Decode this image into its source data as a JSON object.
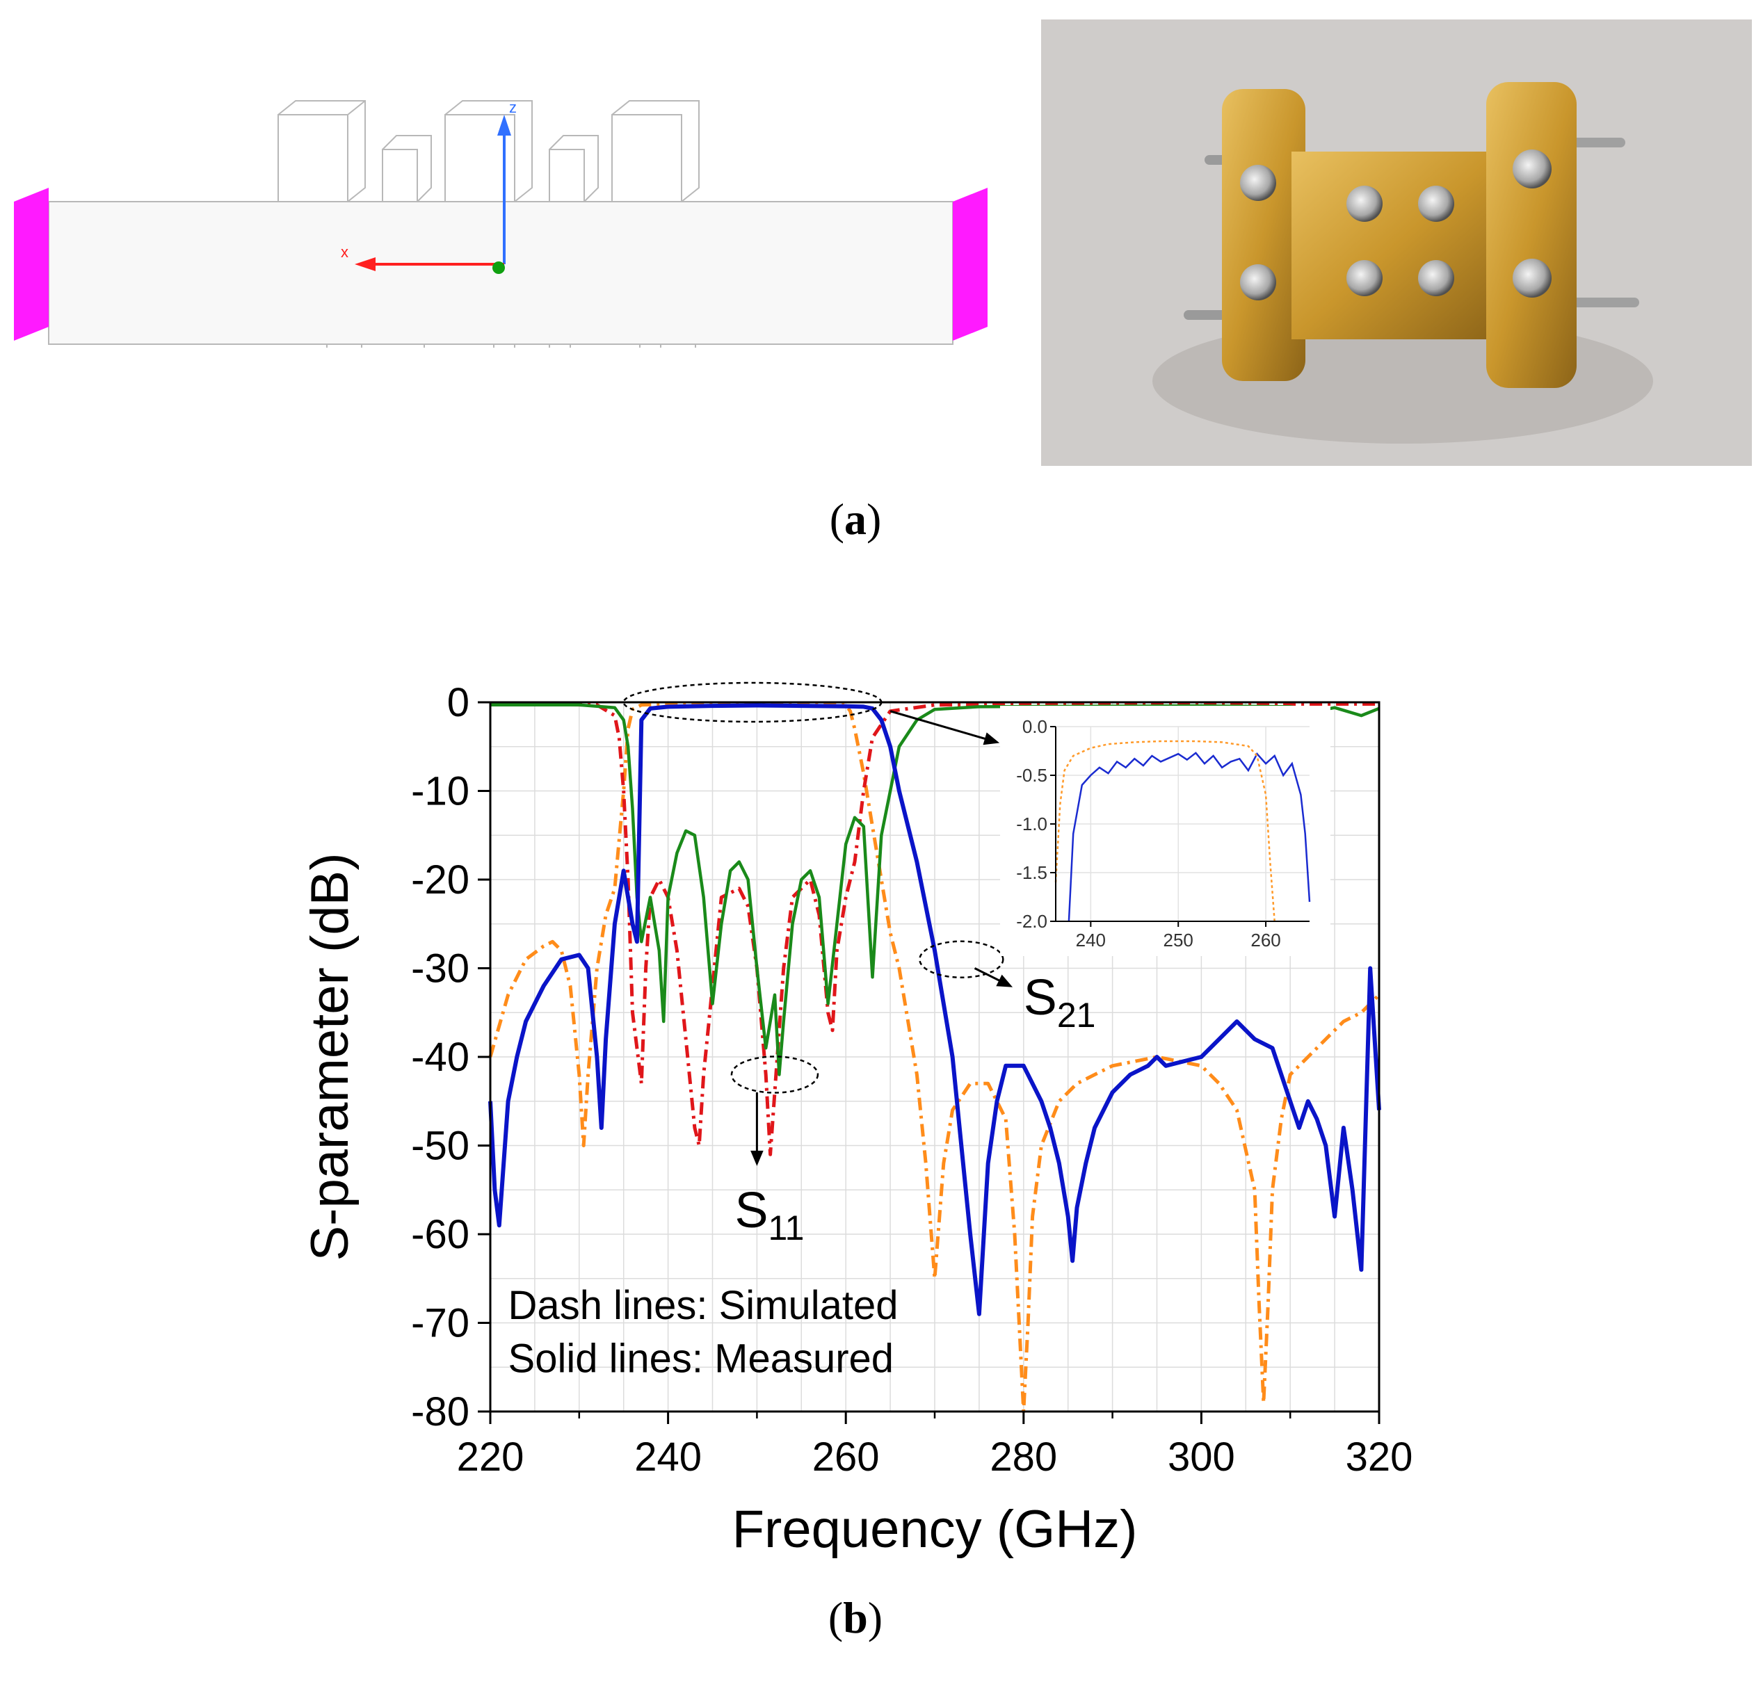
{
  "panels": {
    "a_label": "a",
    "b_label": "b"
  },
  "model": {
    "axis_z": "z",
    "axis_x": "x",
    "port_color": "#ff1aff",
    "outline_color": "#b8b8b8"
  },
  "photo": {
    "subject": "waveguide-filter-block",
    "metal_color": "#c99a2e",
    "background_color": "#cfccca"
  },
  "chart_data": {
    "type": "line",
    "xlabel": "Frequency (GHz)",
    "ylabel": "S-parameter (dB)",
    "xlim": [
      220,
      320
    ],
    "ylim": [
      -80,
      0
    ],
    "xticks": [
      220,
      240,
      260,
      280,
      300,
      320
    ],
    "yticks": [
      0,
      -10,
      -20,
      -30,
      -40,
      -50,
      -60,
      -70,
      -80
    ],
    "grid": true,
    "annotations": {
      "s21_prefix": "S",
      "s21_sub": "21",
      "s11_prefix": "S",
      "s11_sub": "11",
      "note_line1": "Dash lines: Simulated",
      "note_line2": "Solid lines: Measured"
    },
    "series": [
      {
        "key": "meas_s21",
        "color": "#0a14c8",
        "dash": "solid",
        "x": [
          220,
          220.5,
          221,
          222,
          223,
          224,
          226,
          228,
          230,
          231,
          232,
          232.5,
          233,
          234,
          235,
          236,
          236.5,
          237,
          238,
          240,
          245,
          250,
          255,
          260,
          262,
          263,
          264,
          265,
          266,
          268,
          270,
          272,
          273,
          274,
          275,
          276,
          277,
          278,
          280,
          282,
          283,
          284,
          285,
          285.5,
          286,
          287,
          288,
          289,
          290,
          292,
          294,
          295,
          296,
          298,
          300,
          302,
          304,
          306,
          308,
          310,
          311,
          312,
          313,
          314,
          315,
          316,
          317,
          318,
          319,
          320
        ],
        "y": [
          -45,
          -55,
          -59,
          -45,
          -40,
          -36,
          -32,
          -29,
          -28.5,
          -30,
          -40,
          -48,
          -38,
          -25,
          -19,
          -25,
          -27,
          -2,
          -0.7,
          -0.5,
          -0.4,
          -0.35,
          -0.4,
          -0.45,
          -0.5,
          -0.7,
          -2,
          -5,
          -10,
          -18,
          -28,
          -40,
          -50,
          -60,
          -69,
          -52,
          -45,
          -41,
          -41,
          -45,
          -48,
          -52,
          -58,
          -63,
          -57,
          -52,
          -48,
          -46,
          -44,
          -42,
          -41,
          -40,
          -41,
          -40.5,
          -40,
          -38,
          -36,
          -38,
          -39,
          -45,
          -48,
          -45,
          -47,
          -50,
          -58,
          -48,
          -55,
          -64,
          -30,
          -46
        ]
      },
      {
        "key": "meas_s11",
        "color": "#1a8a1a",
        "dash": "solid",
        "x": [
          220,
          230,
          234,
          235,
          235.5,
          236,
          236.5,
          237,
          238,
          239,
          239.5,
          240,
          241,
          242,
          243,
          244,
          245,
          246,
          247,
          248,
          249,
          250,
          251,
          252,
          252.5,
          253,
          254,
          255,
          256,
          257,
          258,
          259,
          260,
          261,
          262,
          263,
          264,
          266,
          268,
          270,
          275,
          300,
          310,
          313,
          315,
          318,
          320
        ],
        "y": [
          -0.3,
          -0.3,
          -0.6,
          -2,
          -5,
          -12,
          -22,
          -27,
          -22,
          -28,
          -36,
          -22,
          -17,
          -14.5,
          -15,
          -22,
          -34,
          -25,
          -19,
          -18,
          -20,
          -30,
          -39,
          -33,
          -42,
          -36,
          -25,
          -20,
          -19,
          -22,
          -34,
          -25,
          -16,
          -13,
          -14,
          -31,
          -15,
          -5,
          -2,
          -0.8,
          -0.5,
          -0.4,
          -0.5,
          -1,
          -0.6,
          -1.5,
          -0.7
        ]
      },
      {
        "key": "sim_s21",
        "color": "#ff8c1a",
        "dash": "dashdot",
        "x": [
          220,
          222,
          224,
          226,
          227,
          228,
          229,
          230,
          230.5,
          231,
          232,
          233,
          234,
          235,
          235.5,
          236,
          237,
          240,
          245,
          250,
          255,
          260,
          260.5,
          261,
          262,
          263,
          264,
          265,
          266,
          268,
          269,
          270,
          271,
          272,
          274,
          276,
          278,
          279,
          279.5,
          280,
          280.5,
          281,
          282,
          284,
          286,
          288,
          290,
          295,
          300,
          302,
          304,
          306,
          306.5,
          307,
          307.5,
          308,
          309,
          310,
          312,
          314,
          316,
          318,
          320
        ],
        "y": [
          -40,
          -33,
          -29,
          -27.5,
          -27,
          -28,
          -32,
          -42,
          -50,
          -42,
          -30,
          -24,
          -21,
          -10,
          -3,
          -0.8,
          -0.3,
          -0.2,
          -0.15,
          -0.15,
          -0.15,
          -0.3,
          -1,
          -3,
          -8,
          -14,
          -20,
          -26,
          -30,
          -42,
          -52,
          -65,
          -52,
          -46,
          -43,
          -43,
          -47,
          -60,
          -70,
          -80,
          -70,
          -58,
          -50,
          -45,
          -43,
          -42,
          -41,
          -40,
          -41,
          -43,
          -46,
          -55,
          -68,
          -79,
          -68,
          -55,
          -47,
          -42,
          -40,
          -38,
          -36,
          -35,
          -33
        ]
      },
      {
        "key": "sim_s11",
        "color": "#e0161a",
        "dash": "dashdot",
        "x": [
          220,
          232,
          234,
          234.5,
          235,
          235.5,
          236,
          237,
          237.5,
          238,
          239,
          240,
          241,
          242,
          243,
          243.5,
          244,
          246,
          248,
          249,
          250,
          251,
          251.5,
          252,
          253,
          254,
          256,
          257,
          258,
          258.5,
          259,
          260,
          261,
          262,
          263,
          265,
          270,
          280,
          300,
          320
        ],
        "y": [
          -0.2,
          -0.3,
          -1.5,
          -4,
          -10,
          -20,
          -35,
          -43,
          -30,
          -22,
          -20,
          -22,
          -28,
          -38,
          -48,
          -50,
          -42,
          -22,
          -21,
          -23,
          -30,
          -42,
          -51,
          -44,
          -30,
          -22,
          -20,
          -24,
          -35,
          -37,
          -28,
          -22,
          -18,
          -10,
          -4,
          -1,
          -0.3,
          -0.2,
          -0.2,
          -0.2
        ]
      }
    ],
    "inset": {
      "xlim": [
        236,
        265
      ],
      "ylim": [
        -2.0,
        0.0
      ],
      "xticks": [
        240,
        250,
        260
      ],
      "yticks": [
        0.0,
        -0.5,
        -1.0,
        -1.5,
        -2.0
      ],
      "xtick_labels": [
        "240",
        "250",
        "260"
      ],
      "ytick_labels": [
        "0.0",
        "-0.5",
        "-1.0",
        "-1.5",
        "-2.0"
      ],
      "series": [
        {
          "key": "inset_meas",
          "color": "#1a2bd0",
          "dash": "solid",
          "x": [
            237.5,
            238,
            239,
            240,
            241,
            242,
            243,
            244,
            245,
            246,
            247,
            248,
            249,
            250,
            251,
            252,
            253,
            254,
            255,
            256,
            257,
            258,
            259,
            260,
            261,
            262,
            263,
            264,
            264.5,
            265
          ],
          "y": [
            -2.0,
            -1.1,
            -0.6,
            -0.5,
            -0.42,
            -0.48,
            -0.36,
            -0.42,
            -0.33,
            -0.4,
            -0.3,
            -0.36,
            -0.32,
            -0.28,
            -0.34,
            -0.27,
            -0.38,
            -0.3,
            -0.42,
            -0.36,
            -0.33,
            -0.45,
            -0.28,
            -0.38,
            -0.3,
            -0.5,
            -0.38,
            -0.7,
            -1.1,
            -1.8
          ]
        },
        {
          "key": "inset_sim",
          "color": "#ff9a2a",
          "dash": "dotted",
          "x": [
            236,
            236.5,
            237,
            238,
            240,
            242,
            245,
            248,
            250,
            252,
            255,
            258,
            259,
            260,
            260.5,
            261
          ],
          "y": [
            -1.6,
            -0.8,
            -0.45,
            -0.3,
            -0.22,
            -0.18,
            -0.16,
            -0.15,
            -0.15,
            -0.15,
            -0.16,
            -0.2,
            -0.3,
            -0.7,
            -1.4,
            -2.0
          ]
        }
      ]
    }
  }
}
